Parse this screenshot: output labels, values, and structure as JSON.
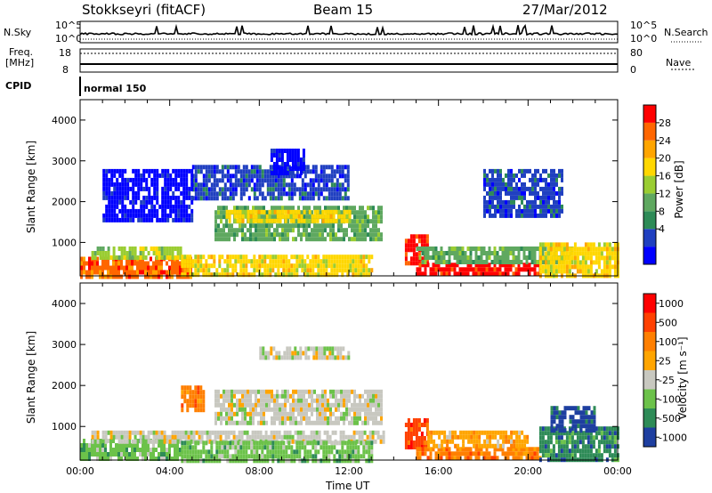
{
  "header": {
    "station": "Stokkseyri (fitACF)",
    "beam": "Beam 15",
    "date": "27/Mar/2012"
  },
  "strips": {
    "nsky_label": "N.Sky",
    "nsky_ticks": [
      "10^5",
      "10^0"
    ],
    "nsearch_label": "N.Search",
    "nsearch_ticks": [
      "10^5",
      "10^0"
    ],
    "freq_label": "Freq.",
    "freq_unit": "[MHz]",
    "freq_ticks": [
      "18",
      "8"
    ],
    "nave_label": "Nave",
    "nave_ticks": [
      "80",
      "0"
    ],
    "cpid_label": "CPID",
    "cpid_value": "normal 150"
  },
  "chart_data": [
    {
      "type": "heatmap",
      "panel": "power",
      "ylabel": "Slant Range [km]",
      "yticks": [
        "4000",
        "3000",
        "2000",
        "1000"
      ],
      "ytick_values": [
        4000,
        3000,
        2000,
        1000
      ],
      "ylim": [
        180,
        4500
      ],
      "xlim": [
        0,
        24
      ],
      "colorbar_title": "Power [dB]",
      "colorbar_ticks": [
        "28",
        "24",
        "20",
        "16",
        "12",
        "8",
        "4"
      ],
      "colorbar_colors": [
        "#0000ff",
        "#2040c0",
        "#2e8b57",
        "#5fa860",
        "#9acd32",
        "#ffd700",
        "#ffa500",
        "#ff6600",
        "#ff0000"
      ],
      "features": [
        {
          "t0": 0,
          "t1": 5,
          "r0": 200,
          "r1": 650,
          "level": 7
        },
        {
          "t0": 0.5,
          "t1": 4.5,
          "r0": 600,
          "r1": 900,
          "level": 4
        },
        {
          "t0": 4.5,
          "t1": 13,
          "r0": 200,
          "r1": 700,
          "level": 5
        },
        {
          "t0": 6,
          "t1": 13.5,
          "r0": 1100,
          "r1": 1900,
          "level": 3
        },
        {
          "t0": 6.5,
          "t1": 12,
          "r0": 1500,
          "r1": 1800,
          "level": 5
        },
        {
          "t0": 14.5,
          "t1": 15.5,
          "r0": 500,
          "r1": 1200,
          "level": 8
        },
        {
          "t0": 15,
          "t1": 20.5,
          "r0": 200,
          "r1": 500,
          "level": 8
        },
        {
          "t0": 15,
          "t1": 22,
          "r0": 500,
          "r1": 900,
          "level": 3
        },
        {
          "t0": 20.5,
          "t1": 24,
          "r0": 200,
          "r1": 1000,
          "level": 5
        },
        {
          "t0": 5,
          "t1": 12,
          "r0": 2100,
          "r1": 2900,
          "level": 1
        },
        {
          "t0": 1,
          "t1": 5,
          "r0": 1500,
          "r1": 2800,
          "level": 0
        },
        {
          "t0": 8.5,
          "t1": 10,
          "r0": 2700,
          "r1": 3300,
          "level": 0
        },
        {
          "t0": 18,
          "t1": 21.5,
          "r0": 1700,
          "r1": 2800,
          "level": 1
        }
      ]
    },
    {
      "type": "heatmap",
      "panel": "velocity",
      "ylabel": "Slant Range [km]",
      "yticks": [
        "4000",
        "3000",
        "2000",
        "1000"
      ],
      "ytick_values": [
        4000,
        3000,
        2000,
        1000
      ],
      "ylim": [
        180,
        4500
      ],
      "xlim": [
        0,
        24
      ],
      "xlabel": "Time UT",
      "xticks": [
        "00:00",
        "04:00",
        "08:00",
        "12:00",
        "16:00",
        "20:00",
        "00:00"
      ],
      "xtick_values": [
        0,
        4,
        8,
        12,
        16,
        20,
        24
      ],
      "colorbar_title": "Velocity [m s⁻¹]",
      "colorbar_ticks": [
        "1000",
        "500",
        "100",
        "25",
        "-25",
        "-100",
        "-500",
        "-1000"
      ],
      "colorbar_colors": [
        "#1e3fa0",
        "#2e8b57",
        "#6cc24a",
        "#c8c8c0",
        "#ffa500",
        "#ff7f00",
        "#ff4000",
        "#ff0000"
      ],
      "features": [
        {
          "t0": 0,
          "t1": 4.5,
          "r0": 200,
          "r1": 700,
          "level": 2
        },
        {
          "t0": 0.5,
          "t1": 13.5,
          "r0": 600,
          "r1": 900,
          "level": 3
        },
        {
          "t0": 4.5,
          "t1": 13,
          "r0": 200,
          "r1": 650,
          "level": 2
        },
        {
          "t0": 6,
          "t1": 13.5,
          "r0": 1100,
          "r1": 1900,
          "level": 3
        },
        {
          "t0": 8,
          "t1": 12,
          "r0": 2700,
          "r1": 2950,
          "level": 3
        },
        {
          "t0": 14.5,
          "t1": 15.5,
          "r0": 500,
          "r1": 1200,
          "level": 6
        },
        {
          "t0": 15,
          "t1": 20.5,
          "r0": 200,
          "r1": 500,
          "level": 5
        },
        {
          "t0": 15.5,
          "t1": 20,
          "r0": 500,
          "r1": 900,
          "level": 4
        },
        {
          "t0": 20.5,
          "t1": 24,
          "r0": 200,
          "r1": 1000,
          "level": 1
        },
        {
          "t0": 21,
          "t1": 23,
          "r0": 900,
          "r1": 1500,
          "level": 0
        },
        {
          "t0": 4.5,
          "t1": 5.5,
          "r0": 1400,
          "r1": 2000,
          "level": 5
        }
      ]
    }
  ]
}
